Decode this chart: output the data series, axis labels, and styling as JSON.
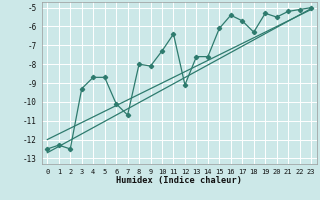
{
  "xlabel": "Humidex (Indice chaleur)",
  "ylabel": "",
  "bg_color": "#cce8e8",
  "grid_color": "#ffffff",
  "line_color": "#2e7b6e",
  "xlim": [
    -0.5,
    23.5
  ],
  "ylim": [
    -13.3,
    -4.7
  ],
  "xticks": [
    0,
    1,
    2,
    3,
    4,
    5,
    6,
    7,
    8,
    9,
    10,
    11,
    12,
    13,
    14,
    15,
    16,
    17,
    18,
    19,
    20,
    21,
    22,
    23
  ],
  "yticks": [
    -5,
    -6,
    -7,
    -8,
    -9,
    -10,
    -11,
    -12,
    -13
  ],
  "series1_x": [
    0,
    1,
    2,
    3,
    4,
    5,
    6,
    7,
    8,
    9,
    10,
    11,
    12,
    13,
    14,
    15,
    16,
    17,
    18,
    19,
    20,
    21,
    22,
    23
  ],
  "series1_y": [
    -12.5,
    -12.3,
    -12.5,
    -9.3,
    -8.7,
    -8.7,
    -10.1,
    -10.7,
    -8.0,
    -8.1,
    -7.3,
    -6.4,
    -9.1,
    -7.6,
    -7.6,
    -6.1,
    -5.4,
    -5.7,
    -6.3,
    -5.3,
    -5.5,
    -5.2,
    -5.1,
    -5.0
  ],
  "trend1_x": [
    0,
    23
  ],
  "trend1_y": [
    -12.7,
    -5.05
  ],
  "trend2_x": [
    0,
    23
  ],
  "trend2_y": [
    -12.0,
    -5.1
  ]
}
